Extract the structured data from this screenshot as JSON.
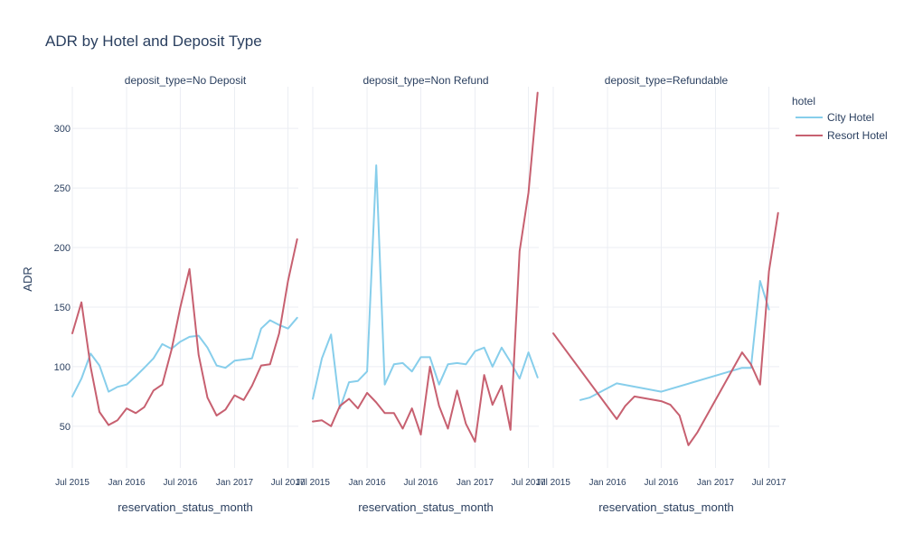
{
  "chart_data": {
    "type": "line",
    "title": "ADR by Hotel and Deposit Type",
    "ylabel": "ADR",
    "xlabel": "reservation_status_month",
    "ylim": [
      15,
      335
    ],
    "yticks": [
      50,
      100,
      150,
      200,
      250,
      300
    ],
    "xlim": [
      "2015-07-01",
      "2017-08-05"
    ],
    "xticks": [
      {
        "date": "2015-07-01",
        "label": "Jul 2015"
      },
      {
        "date": "2016-01-01",
        "label": "Jan 2016"
      },
      {
        "date": "2016-07-01",
        "label": "Jul 2016"
      },
      {
        "date": "2017-01-01",
        "label": "Jan 2017"
      },
      {
        "date": "2017-07-01",
        "label": "Jul 2017"
      }
    ],
    "grid": true,
    "legend_title": "hotel",
    "legend_position": "top-right",
    "series_colors": {
      "City Hotel": "#87ceeb",
      "Resort Hotel": "#c76070"
    },
    "facets": [
      {
        "title": "deposit_type=No Deposit",
        "series": [
          {
            "name": "City Hotel",
            "x": [
              "2015-07-01",
              "2015-08-01",
              "2015-09-01",
              "2015-10-01",
              "2015-11-01",
              "2015-12-01",
              "2016-01-01",
              "2016-02-01",
              "2016-03-01",
              "2016-04-01",
              "2016-05-01",
              "2016-06-01",
              "2016-07-01",
              "2016-08-01",
              "2016-09-01",
              "2016-10-01",
              "2016-11-01",
              "2016-12-01",
              "2017-01-01",
              "2017-02-01",
              "2017-03-01",
              "2017-04-01",
              "2017-05-01",
              "2017-06-01",
              "2017-07-01",
              "2017-08-01"
            ],
            "y": [
              75,
              90,
              111,
              101,
              79,
              83,
              85,
              92,
              99,
              107,
              119,
              115,
              121,
              125,
              126,
              116,
              101,
              99,
              105,
              106,
              107,
              132,
              139,
              135,
              132,
              141
            ]
          },
          {
            "name": "Resort Hotel",
            "x": [
              "2015-07-01",
              "2015-08-01",
              "2015-09-01",
              "2015-10-01",
              "2015-11-01",
              "2015-12-01",
              "2016-01-01",
              "2016-02-01",
              "2016-03-01",
              "2016-04-01",
              "2016-05-01",
              "2016-06-01",
              "2016-07-01",
              "2016-08-01",
              "2016-09-01",
              "2016-10-01",
              "2016-11-01",
              "2016-12-01",
              "2017-01-01",
              "2017-02-01",
              "2017-03-01",
              "2017-04-01",
              "2017-05-01",
              "2017-06-01",
              "2017-07-01",
              "2017-08-01"
            ],
            "y": [
              128,
              154,
              100,
              62,
              51,
              55,
              65,
              61,
              66,
              80,
              85,
              114,
              150,
              182,
              110,
              74,
              59,
              64,
              76,
              72,
              84,
              101,
              102,
              128,
              172,
              207
            ]
          }
        ]
      },
      {
        "title": "deposit_type=Non Refund",
        "series": [
          {
            "name": "City Hotel",
            "x": [
              "2015-07-01",
              "2015-08-01",
              "2015-09-01",
              "2015-10-01",
              "2015-11-01",
              "2015-12-01",
              "2016-01-01",
              "2016-02-01",
              "2016-03-01",
              "2016-04-01",
              "2016-05-01",
              "2016-06-01",
              "2016-07-01",
              "2016-08-01",
              "2016-09-01",
              "2016-10-01",
              "2016-11-01",
              "2016-12-01",
              "2017-01-01",
              "2017-02-01",
              "2017-03-01",
              "2017-04-01",
              "2017-05-01",
              "2017-06-01",
              "2017-07-01",
              "2017-08-01"
            ],
            "y": [
              73,
              107,
              127,
              65,
              87,
              88,
              96,
              269,
              85,
              102,
              103,
              96,
              108,
              108,
              85,
              102,
              103,
              102,
              113,
              116,
              100,
              116,
              104,
              90,
              112,
              91
            ]
          },
          {
            "name": "Resort Hotel",
            "x": [
              "2015-07-01",
              "2015-08-01",
              "2015-09-01",
              "2015-10-01",
              "2015-11-01",
              "2015-12-01",
              "2016-01-01",
              "2016-02-01",
              "2016-03-01",
              "2016-04-01",
              "2016-05-01",
              "2016-06-01",
              "2016-07-01",
              "2016-08-01",
              "2016-09-01",
              "2016-10-01",
              "2016-11-01",
              "2016-12-01",
              "2017-01-01",
              "2017-02-01",
              "2017-03-01",
              "2017-04-01",
              "2017-05-01",
              "2017-06-01",
              "2017-07-01",
              "2017-08-01"
            ],
            "y": [
              54,
              55,
              50,
              67,
              73,
              65,
              78,
              70,
              61,
              61,
              48,
              65,
              43,
              100,
              67,
              48,
              80,
              52,
              37,
              93,
              68,
              84,
              47,
              197,
              246,
              330
            ]
          }
        ]
      },
      {
        "title": "deposit_type=Refundable",
        "series": [
          {
            "name": "City Hotel",
            "x": [
              "2015-10-01",
              "2015-11-01",
              "2016-02-01",
              "2016-07-01",
              "2017-04-01",
              "2017-05-01",
              "2017-06-01",
              "2017-07-01"
            ],
            "y": [
              72,
              74,
              86,
              79,
              99,
              99,
              172,
              148
            ]
          },
          {
            "name": "Resort Hotel",
            "x": [
              "2015-07-01",
              "2016-02-01",
              "2016-03-01",
              "2016-04-01",
              "2016-07-01",
              "2016-08-01",
              "2016-09-01",
              "2016-10-01",
              "2016-11-01",
              "2017-04-01",
              "2017-05-01",
              "2017-06-01",
              "2017-07-01",
              "2017-08-01"
            ],
            "y": [
              128,
              56,
              67,
              75,
              71,
              68,
              59,
              34,
              45,
              112,
              102,
              85,
              180,
              229
            ]
          }
        ]
      }
    ]
  }
}
